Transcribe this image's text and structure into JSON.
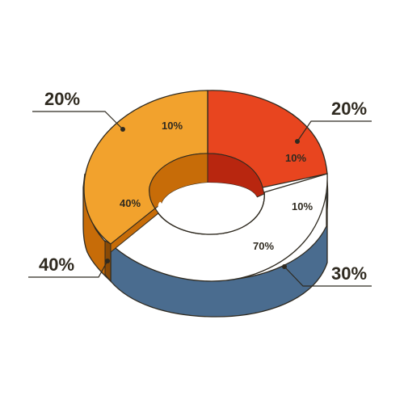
{
  "chart_data": {
    "type": "pie",
    "style": "3D donut",
    "title": "",
    "legend": "none",
    "slices": [
      {
        "label": "20%",
        "value": 20,
        "color": "#e8451f",
        "side_color": "#c03416",
        "inner_labels": [
          "10%"
        ]
      },
      {
        "label": "30%",
        "value": 30,
        "color": "#ffffff",
        "side_color": "#4a6c8f",
        "inner_labels": [
          "10%",
          "70%"
        ]
      },
      {
        "label": "40%",
        "value": 40,
        "color": "#f2a22d",
        "side_color": "#c76c08",
        "inner_labels": [
          "40%"
        ]
      },
      {
        "label": "20%",
        "value": 20,
        "color": "#f2a22d",
        "side_color": "#c76c08",
        "inner_labels": [
          "10%"
        ]
      }
    ],
    "callouts": [
      {
        "text": "20%"
      },
      {
        "text": "20%"
      },
      {
        "text": "40%"
      },
      {
        "text": "30%"
      }
    ],
    "colors": {
      "orange": "#f2a22d",
      "orange_dark": "#c76c08",
      "red": "#e8451f",
      "red_dark": "#b8260f",
      "white": "#ffffff",
      "blue": "#4a6c8f",
      "outline": "#2f2a20"
    }
  }
}
